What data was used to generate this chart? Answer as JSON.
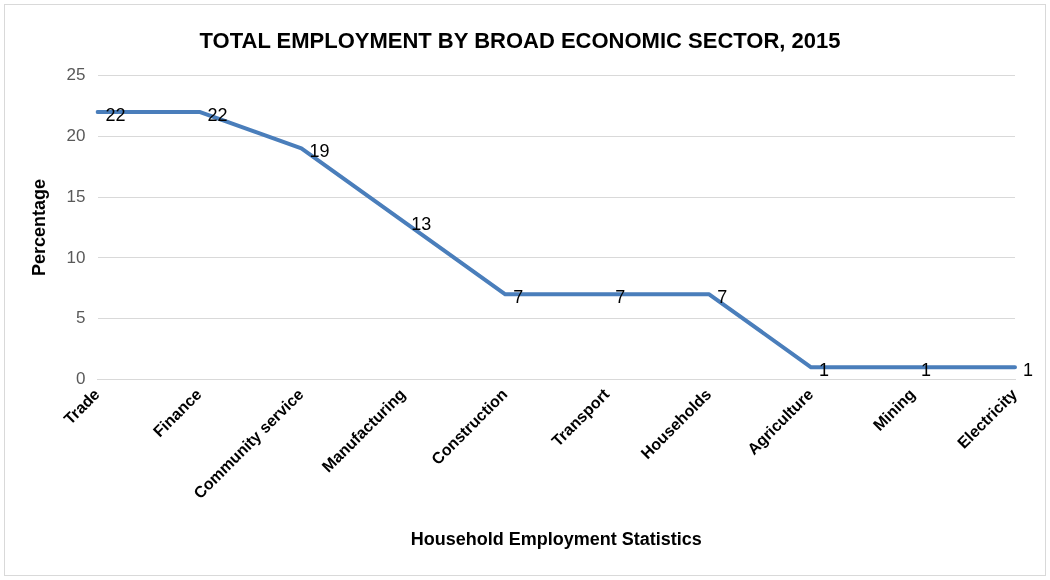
{
  "chart_data": {
    "type": "line",
    "title": "TOTAL EMPLOYMENT BY BROAD ECONOMIC SECTOR, 2015",
    "xlabel": "Household Employment Statistics",
    "ylabel": "Percentage",
    "categories": [
      "Trade",
      "Finance",
      "Community service",
      "Manufacturing",
      "Construction",
      "Transport",
      "Households",
      "Agriculture",
      "Mining",
      "Electricity"
    ],
    "series": [
      {
        "color": "#4a7ebb",
        "values": [
          22,
          22,
          19,
          13,
          7,
          7,
          7,
          1,
          1,
          1
        ]
      }
    ],
    "ylim": [
      0,
      25
    ],
    "yticks": [
      0,
      5,
      10,
      15,
      20,
      25
    ],
    "grid": "y",
    "legend": false,
    "data_labels": true,
    "marker": "none",
    "line_style": "solid"
  }
}
